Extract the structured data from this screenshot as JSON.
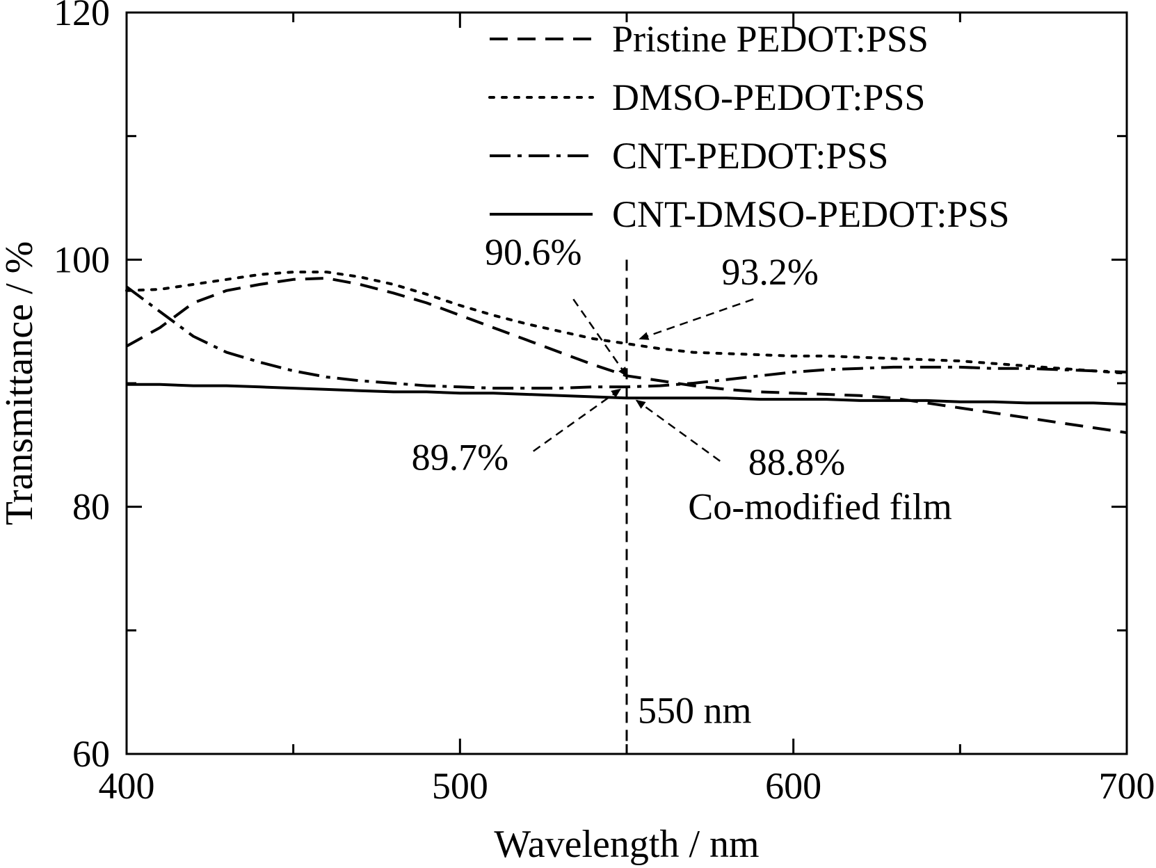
{
  "chart_data": {
    "type": "line",
    "xlabel": "Wavelength / nm",
    "ylabel": "Transmittance / %",
    "xlim": [
      400,
      700
    ],
    "ylim": [
      60,
      120
    ],
    "xticks": [
      400,
      500,
      600,
      700
    ],
    "yticks": [
      60,
      80,
      100,
      120
    ],
    "grid": false,
    "legend_position": "top-right",
    "series": [
      {
        "name": "Pristine PEDOT:PSS",
        "style": "dashed",
        "x": [
          400,
          410,
          420,
          430,
          440,
          450,
          460,
          470,
          480,
          490,
          500,
          510,
          520,
          530,
          540,
          550,
          560,
          570,
          580,
          590,
          600,
          610,
          620,
          630,
          640,
          650,
          660,
          670,
          680,
          690,
          700
        ],
        "y": [
          93.0,
          94.5,
          96.5,
          97.5,
          98.0,
          98.4,
          98.5,
          98.0,
          97.3,
          96.5,
          95.5,
          94.5,
          93.5,
          92.5,
          91.5,
          90.6,
          90.2,
          89.8,
          89.5,
          89.3,
          89.2,
          89.1,
          89.0,
          88.8,
          88.4,
          88.0,
          87.6,
          87.2,
          86.8,
          86.4,
          86.0
        ]
      },
      {
        "name": "DMSO-PEDOT:PSS",
        "style": "dotted",
        "x": [
          400,
          410,
          420,
          430,
          440,
          450,
          460,
          470,
          480,
          490,
          500,
          510,
          520,
          530,
          540,
          550,
          560,
          570,
          580,
          590,
          600,
          610,
          620,
          630,
          640,
          650,
          660,
          670,
          680,
          690,
          700
        ],
        "y": [
          97.5,
          97.6,
          98.0,
          98.4,
          98.8,
          99.0,
          99.0,
          98.6,
          98.0,
          97.2,
          96.3,
          95.5,
          94.8,
          94.2,
          93.6,
          93.2,
          92.8,
          92.5,
          92.4,
          92.3,
          92.2,
          92.2,
          92.1,
          92.0,
          91.9,
          91.8,
          91.6,
          91.4,
          91.2,
          91.0,
          90.8
        ]
      },
      {
        "name": "CNT-PEDOT:PSS",
        "style": "dashdot",
        "x": [
          400,
          410,
          420,
          430,
          440,
          450,
          460,
          470,
          480,
          490,
          500,
          510,
          520,
          530,
          540,
          550,
          560,
          570,
          580,
          590,
          600,
          610,
          620,
          630,
          640,
          650,
          660,
          670,
          680,
          690,
          700
        ],
        "y": [
          97.8,
          95.8,
          93.8,
          92.5,
          91.7,
          91.0,
          90.5,
          90.2,
          90.0,
          89.8,
          89.7,
          89.6,
          89.6,
          89.6,
          89.7,
          89.7,
          89.8,
          90.0,
          90.3,
          90.6,
          90.9,
          91.1,
          91.2,
          91.3,
          91.3,
          91.3,
          91.2,
          91.2,
          91.1,
          91.0,
          90.9
        ]
      },
      {
        "name": "CNT-DMSO-PEDOT:PSS",
        "style": "solid",
        "x": [
          400,
          410,
          420,
          430,
          440,
          450,
          460,
          470,
          480,
          490,
          500,
          510,
          520,
          530,
          540,
          550,
          560,
          570,
          580,
          590,
          600,
          610,
          620,
          630,
          640,
          650,
          660,
          670,
          680,
          690,
          700
        ],
        "y": [
          89.9,
          89.9,
          89.8,
          89.8,
          89.7,
          89.6,
          89.5,
          89.4,
          89.3,
          89.3,
          89.2,
          89.2,
          89.1,
          89.0,
          88.9,
          88.8,
          88.8,
          88.8,
          88.8,
          88.7,
          88.7,
          88.7,
          88.6,
          88.6,
          88.6,
          88.5,
          88.5,
          88.4,
          88.4,
          88.4,
          88.3
        ]
      }
    ],
    "reference_line": {
      "x": 550,
      "label": "550 nm"
    },
    "annotations": [
      {
        "text": "90.6%",
        "text_x": 522,
        "text_y": 99.6,
        "target_x": 550,
        "target_y": 90.6,
        "arrow_from_x": 534,
        "arrow_from_y": 96.8
      },
      {
        "text": "93.2%",
        "text_x": 593,
        "text_y": 98.0,
        "target_x": 554,
        "target_y": 93.6,
        "arrow_from_x": 588,
        "arrow_from_y": 96.8
      },
      {
        "text": "89.7%",
        "text_x": 500,
        "text_y": 83.0,
        "target_x": 548,
        "target_y": 89.5,
        "arrow_from_x": 522,
        "arrow_from_y": 84.5
      },
      {
        "text": "88.8%",
        "text_x": 601,
        "text_y": 82.6,
        "target_x": 553,
        "target_y": 88.6,
        "arrow_from_x": 578,
        "arrow_from_y": 83.7
      },
      {
        "text": "Co-modified film",
        "text_x": 608,
        "text_y": 79.0
      }
    ]
  }
}
